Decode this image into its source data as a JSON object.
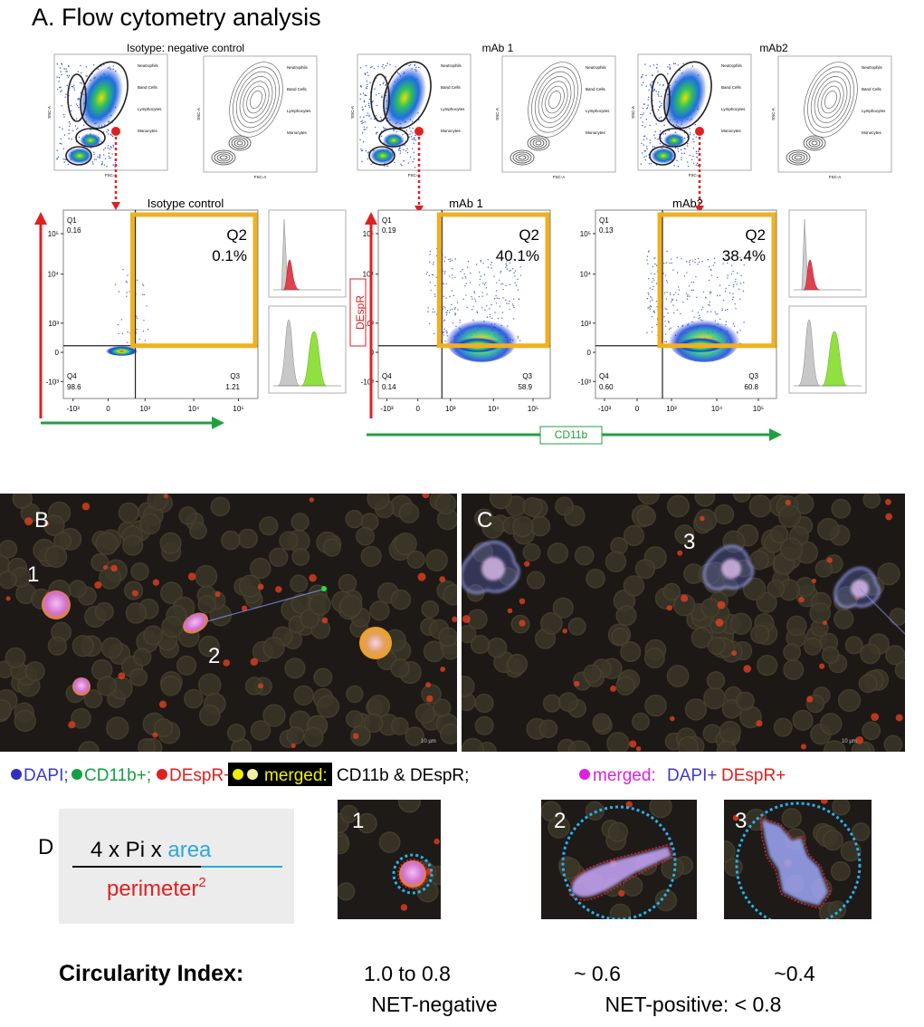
{
  "title": "A. Flow cytometry analysis",
  "panel_a": {
    "groups": [
      {
        "title": "Isotype: negative control",
        "plot_title": "Isotype control",
        "q1": "Q1",
        "q1_value": "0.16",
        "q2": "Q2",
        "q2_value": "0.1%",
        "q3": "Q3",
        "q3_value": "1.21",
        "q4": "Q4",
        "q4_value": "98.6"
      },
      {
        "title": "mAb 1",
        "plot_title": "mAb 1",
        "q1": "Q1",
        "q1_value": "0.19",
        "q2": "Q2",
        "q2_value": "40.1%",
        "q3": "Q3",
        "q3_value": "58.9",
        "q4": "Q4",
        "q4_value": "0.14"
      },
      {
        "title": "mAb2",
        "plot_title": "mAb2",
        "q1": "Q1",
        "q1_value": "0.13",
        "q2": "Q2",
        "q2_value": "38.4%",
        "q3": "Q3",
        "q3_value": "60.8",
        "q4": "Q4",
        "q4_value": "0.60"
      }
    ],
    "gate_labels": [
      "Neutrophils",
      "Band Cells",
      "Lymphocytes",
      "Monocytes"
    ],
    "scatter_y_label": "SSC-A",
    "scatter_x_label": "FSC-A",
    "y_ticks": [
      "10⁵",
      "10⁴",
      "10³",
      "0",
      "-10³"
    ],
    "x_ticks": [
      "-10³",
      "0",
      "10³",
      "10⁴",
      "10⁵"
    ],
    "y_label": "DEspR",
    "x_label": "CD11b"
  },
  "panel_b": {
    "label": "B",
    "cells": [
      "1",
      "2"
    ],
    "scale_bar": "10 µm"
  },
  "panel_c": {
    "label": "C",
    "cells": [
      "3"
    ],
    "scale_bar": "10 µm"
  },
  "legend": {
    "dapi": "DAPI;",
    "cd11b": "CD11b+;",
    "despr": "DEspR+;",
    "merged_1": "merged:",
    "merged_1_text": "CD11b & DEspR;",
    "merged_2": "merged:",
    "merged_2_dapi": "DAPI+",
    "merged_2_despr": "DEspR+"
  },
  "panel_d": {
    "label": "D",
    "formula_numerator": "4 x Pi x ",
    "formula_area": "area",
    "formula_denominator": "perimeter",
    "formula_exponent": "2",
    "images": [
      "1",
      "2",
      "3"
    ],
    "index_label": "Circularity  Index:",
    "values": [
      "1.0 to 0.8",
      "~ 0.6",
      "~0.4"
    ],
    "net_negative": "NET-negative",
    "net_positive": "NET-positive: < 0.8"
  }
}
